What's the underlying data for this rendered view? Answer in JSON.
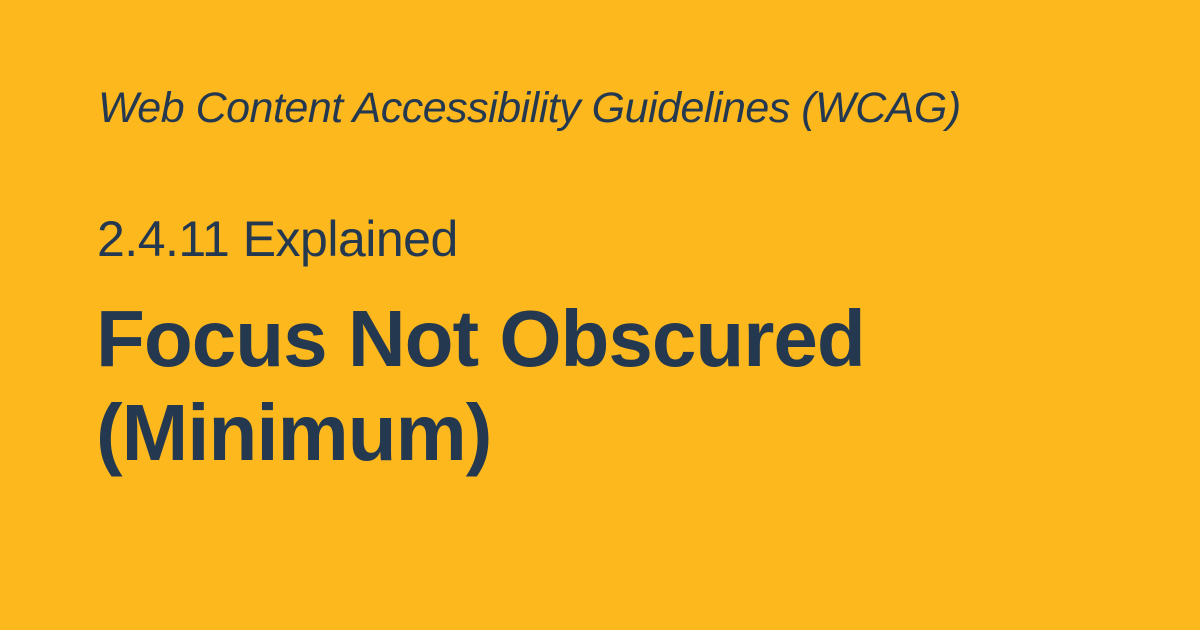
{
  "colors": {
    "background": "#FDB81E",
    "text": "#243950"
  },
  "card": {
    "kicker": "Web Content Accessibility Guidelines (WCAG)",
    "subtitle": "2.4.11 Explained",
    "title_lines": [
      "Focus Not Obscured",
      "(Minimum)"
    ]
  }
}
